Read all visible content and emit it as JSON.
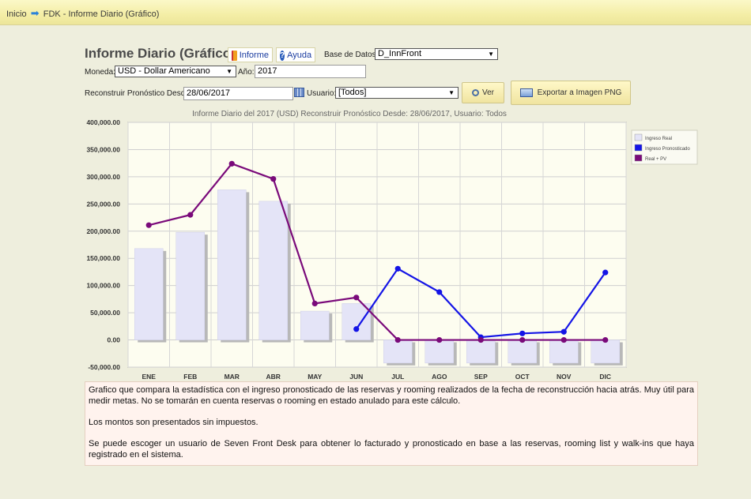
{
  "breadcrumb": {
    "home": "Inicio",
    "current": "FDK - Informe Diario (Gráfico)"
  },
  "header": {
    "title": "Informe Diario (Gráfico)",
    "informe_label": "Informe",
    "ayuda_label": "Ayuda",
    "db_label": "Base de Datos:",
    "db_value": "D_InnFront"
  },
  "filters": {
    "moneda_label": "Moneda:",
    "moneda_value": "USD - Dollar Americano",
    "anio_label": "Año:",
    "anio_value": "2017",
    "desde_label": "Reconstruir Pronóstico Desde:",
    "desde_value": "28/06/2017",
    "usuario_label": "Usuario:",
    "usuario_value": "[Todos]",
    "ver_label": "Ver",
    "export_label": "Exportar a Imagen PNG"
  },
  "chart_data": {
    "type": "bar",
    "title": "Informe Diario del 2017 (USD) Reconstruir Pronóstico Desde: 28/06/2017, Usuario: Todos",
    "categories": [
      "ENE",
      "FEB",
      "MAR",
      "ABR",
      "MAY",
      "JUN",
      "JUL",
      "AGO",
      "SEP",
      "OCT",
      "NOV",
      "DIC"
    ],
    "ylim": [
      -50000,
      400000
    ],
    "yticks": [
      "400,000.00",
      "350,000.00",
      "300,000.00",
      "250,000.00",
      "200,000.00",
      "150,000.00",
      "100,000.00",
      "50,000.00",
      "0.00",
      "-50,000.00"
    ],
    "ytick_values": [
      400000,
      350000,
      300000,
      250000,
      200000,
      150000,
      100000,
      50000,
      0,
      -50000
    ],
    "grid": true,
    "legend_position": "right",
    "series": [
      {
        "name": "Ingreso Real",
        "kind": "bar",
        "color": "#e4e4f7",
        "values": [
          168000,
          198000,
          276000,
          255000,
          53000,
          67000,
          0,
          0,
          0,
          0,
          0,
          0
        ]
      },
      {
        "name": "Ingreso Pronosticado",
        "kind": "line",
        "color": "#1414e6",
        "values": [
          null,
          null,
          null,
          null,
          null,
          20000,
          131000,
          88000,
          5000,
          12000,
          15000,
          124000
        ]
      },
      {
        "name": "Real + PV",
        "kind": "line",
        "color": "#7a0a7a",
        "values": [
          211000,
          230000,
          324000,
          296000,
          67000,
          78000,
          0,
          0,
          0,
          0,
          0,
          0
        ]
      }
    ]
  },
  "description": {
    "p1": "Grafico que compara la estadística con el ingreso pronosticado de las reservas y rooming realizados de la fecha de reconstrucción hacia atrás. Muy útil para medir metas. No se tomarán en cuenta reservas o rooming en estado anulado para este cálculo.",
    "p2": "Los montos son presentados sin impuestos.",
    "p3": "Se puede escoger un usuario de Seven Front Desk para obtener lo facturado y pronosticado en base a las reservas, rooming list y walk-ins que haya registrado en el sistema."
  }
}
